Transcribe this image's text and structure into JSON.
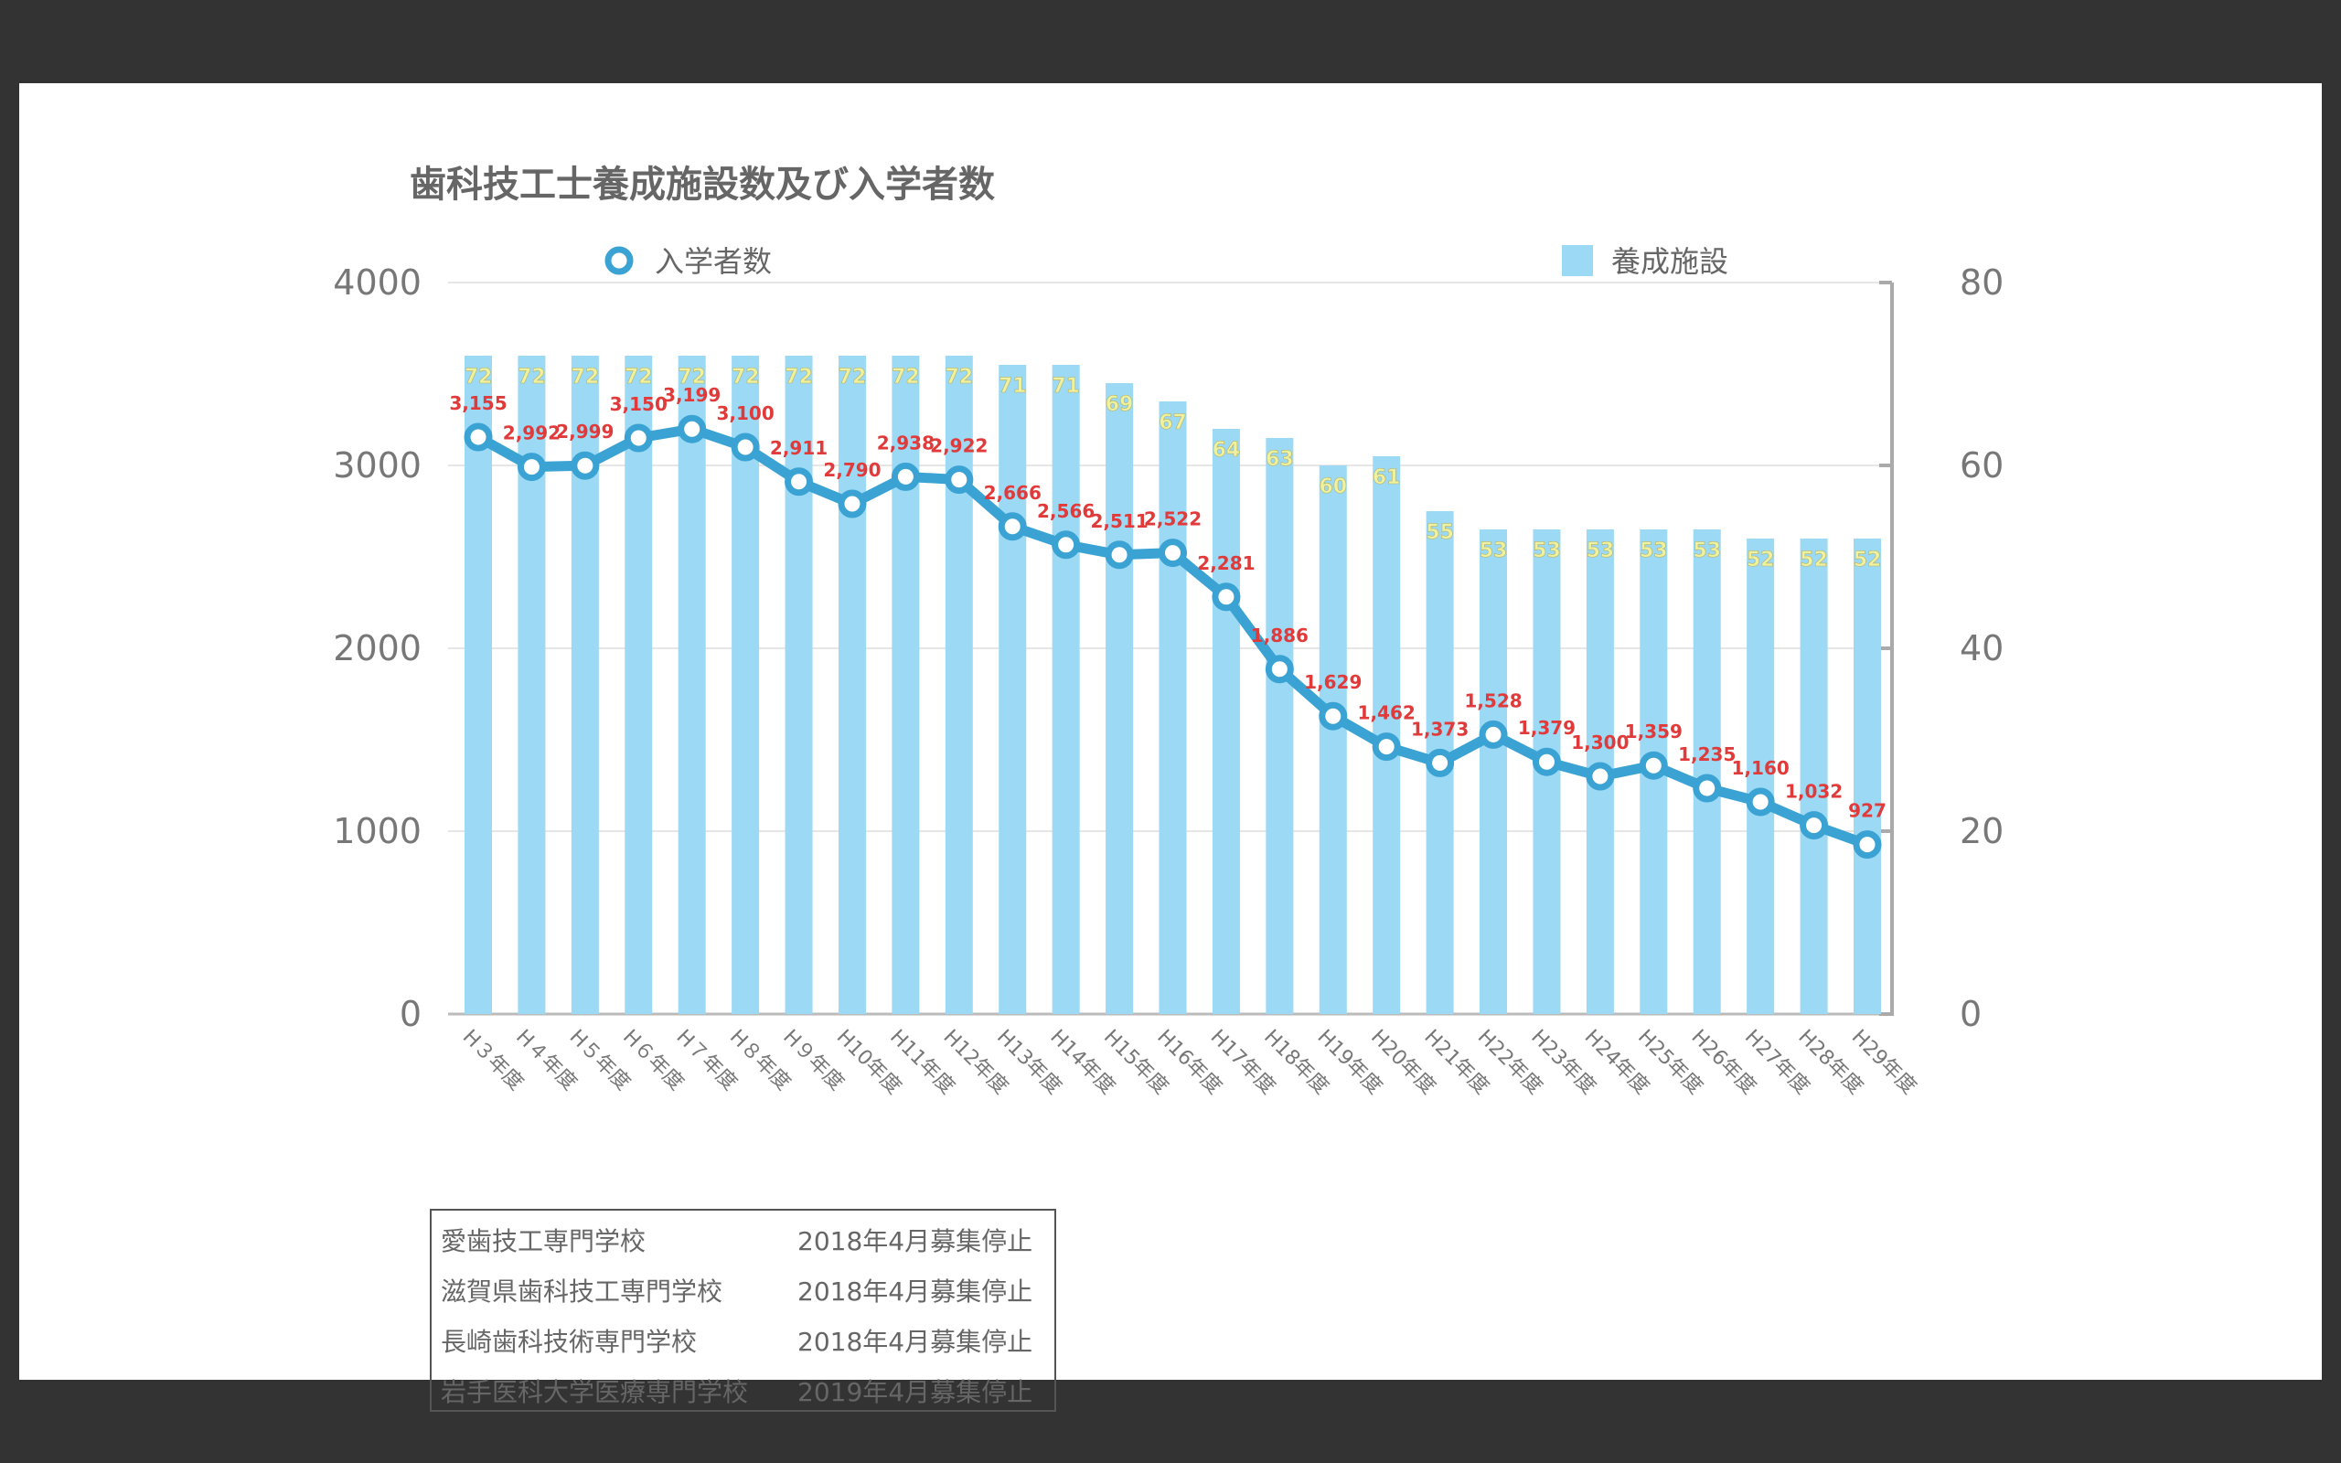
{
  "chart_data": {
    "type": "bar+line",
    "title": "歯科技工士養成施設数及び入学者数",
    "categories": [
      "H３年度",
      "H４年度",
      "H５年度",
      "H６年度",
      "H７年度",
      "H８年度",
      "H９年度",
      "H10年度",
      "H11年度",
      "H12年度",
      "H13年度",
      "H14年度",
      "H15年度",
      "H16年度",
      "H17年度",
      "H18年度",
      "H19年度",
      "H20年度",
      "H21年度",
      "H22年度",
      "H23年度",
      "H24年度",
      "H25年度",
      "H26年度",
      "H27年度",
      "H28年度",
      "H29年度"
    ],
    "series": [
      {
        "name": "入学者数",
        "type": "line",
        "axis": "left",
        "color": "#3ba3d3",
        "values": [
          3155,
          2992,
          2999,
          3150,
          3199,
          3100,
          2911,
          2790,
          2938,
          2922,
          2666,
          2566,
          2511,
          2522,
          2281,
          1886,
          1629,
          1462,
          1373,
          1528,
          1379,
          1300,
          1359,
          1235,
          1160,
          1032,
          927
        ],
        "labels": [
          "3,155",
          "2,992",
          "2,999",
          "3,150",
          "3,199",
          "3,100",
          "2,911",
          "2,790",
          "2,938",
          "2,922",
          "2,666",
          "2,566",
          "2,511",
          "2,522",
          "2,281",
          "1,886",
          "1,629",
          "1,462",
          "1,373",
          "1,528",
          "1,379",
          "1,300",
          "1,359",
          "1,235",
          "1,160",
          "1,032",
          "927"
        ]
      },
      {
        "name": "養成施設",
        "type": "bar",
        "axis": "right",
        "color": "#9bd9f4",
        "values": [
          72,
          72,
          72,
          72,
          72,
          72,
          72,
          72,
          72,
          72,
          71,
          71,
          69,
          67,
          64,
          63,
          60,
          61,
          55,
          53,
          53,
          53,
          53,
          53,
          52,
          52,
          52
        ]
      }
    ],
    "y_left": {
      "range": [
        0,
        4000
      ],
      "ticks": [
        "0",
        "1000",
        "2000",
        "3000",
        "4000"
      ]
    },
    "y_right": {
      "range": [
        0,
        80
      ],
      "ticks": [
        "0",
        "20",
        "40",
        "60",
        "80"
      ]
    },
    "grid": true,
    "legend": "top",
    "label_colors": {
      "line_label": "#e03a3a",
      "bar_label": "#eef2a0"
    }
  },
  "notes": [
    {
      "school": "愛歯技工専門学校",
      "status": "2018年4月募集停止"
    },
    {
      "school": "滋賀県歯科技工専門学校",
      "status": "2018年4月募集停止"
    },
    {
      "school": "長崎歯科技術専門学校",
      "status": "2018年4月募集停止"
    },
    {
      "school": "岩手医科大学医療専門学校",
      "status": "2019年4月募集停止"
    }
  ]
}
